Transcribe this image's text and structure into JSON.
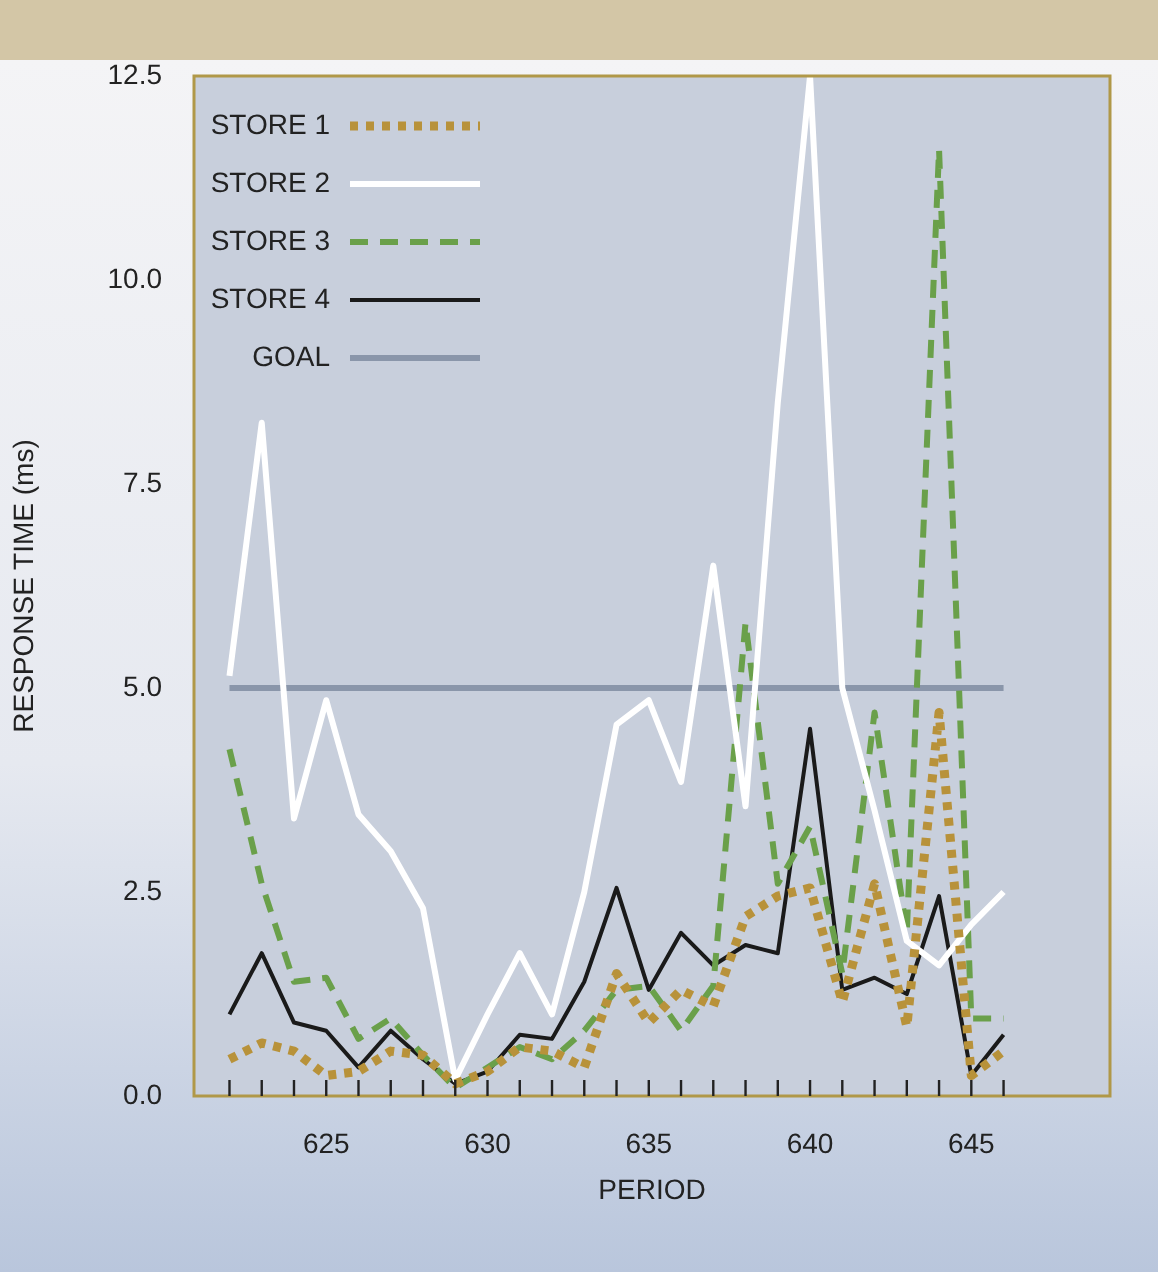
{
  "chart_data": {
    "type": "line",
    "xlabel": "PERIOD",
    "ylabel": "RESPONSE TIME (ms)",
    "x": [
      622,
      623,
      624,
      625,
      626,
      627,
      628,
      629,
      630,
      631,
      632,
      633,
      634,
      635,
      636,
      637,
      638,
      639,
      640,
      641,
      642,
      643,
      644,
      645,
      646
    ],
    "xlim": [
      620.9,
      649.3
    ],
    "xticks": [
      {
        "value": 622,
        "label": null
      },
      {
        "value": 623,
        "label": null
      },
      {
        "value": 624,
        "label": null
      },
      625,
      {
        "value": 626,
        "label": null
      },
      {
        "value": 627,
        "label": null
      },
      {
        "value": 628,
        "label": null
      },
      {
        "value": 629,
        "label": null
      },
      630,
      {
        "value": 631,
        "label": null
      },
      {
        "value": 632,
        "label": null
      },
      {
        "value": 633,
        "label": null
      },
      {
        "value": 634,
        "label": null
      },
      635,
      {
        "value": 636,
        "label": null
      },
      {
        "value": 637,
        "label": null
      },
      {
        "value": 638,
        "label": null
      },
      {
        "value": 639,
        "label": null
      },
      640,
      {
        "value": 641,
        "label": null
      },
      {
        "value": 642,
        "label": null
      },
      {
        "value": 643,
        "label": null
      },
      {
        "value": 644,
        "label": null
      },
      645,
      {
        "value": 646,
        "label": null
      }
    ],
    "ylim": [
      0,
      12.5
    ],
    "yticks": [
      {
        "value": 0,
        "label": "0.0"
      },
      2.5,
      {
        "value": 5,
        "label": "5.0"
      },
      7.5,
      {
        "value": 10,
        "label": "10.0"
      },
      12.5
    ],
    "legend": "top left",
    "marker": "none",
    "series": [
      {
        "name": "STORE 1",
        "color": "#b8923a",
        "line_style": "dotted",
        "values": [
          0.45,
          0.65,
          0.55,
          0.25,
          0.3,
          0.55,
          0.5,
          0.15,
          0.3,
          0.6,
          0.55,
          0.35,
          1.5,
          0.9,
          1.3,
          1.1,
          2.2,
          2.45,
          2.55,
          1.15,
          2.6,
          0.85,
          4.7,
          0.25,
          0.55
        ]
      },
      {
        "name": "STORE 2",
        "color": "#ffffff",
        "line_style": "solid",
        "values": [
          5.15,
          8.25,
          3.4,
          4.85,
          3.45,
          3.0,
          2.3,
          0.2,
          1.0,
          1.75,
          1.0,
          2.5,
          4.55,
          4.85,
          3.85,
          6.5,
          3.55,
          8.5,
          12.5,
          5.0,
          3.5,
          1.9,
          1.6,
          2.1,
          2.5
        ]
      },
      {
        "name": "STORE 3",
        "color": "#6aa04a",
        "line_style": "dashed",
        "values": [
          4.25,
          2.6,
          1.4,
          1.45,
          0.7,
          0.95,
          0.5,
          0.1,
          0.35,
          0.6,
          0.45,
          0.8,
          1.3,
          1.35,
          0.8,
          1.35,
          5.8,
          2.6,
          3.3,
          1.5,
          4.7,
          2.0,
          11.6,
          0.95,
          0.95
        ]
      },
      {
        "name": "STORE 4",
        "color": "#1a1a1a",
        "line_style": "solid",
        "values": [
          1.0,
          1.75,
          0.9,
          0.8,
          0.35,
          0.8,
          0.45,
          0.15,
          0.3,
          0.75,
          0.7,
          1.4,
          2.55,
          1.3,
          2.0,
          1.6,
          1.85,
          1.75,
          4.5,
          1.3,
          1.45,
          1.25,
          2.45,
          0.25,
          0.75
        ]
      },
      {
        "name": "GOAL",
        "color": "#8a96aa",
        "line_style": "solid",
        "x": [
          622,
          646
        ],
        "values": [
          5,
          5
        ]
      }
    ]
  }
}
